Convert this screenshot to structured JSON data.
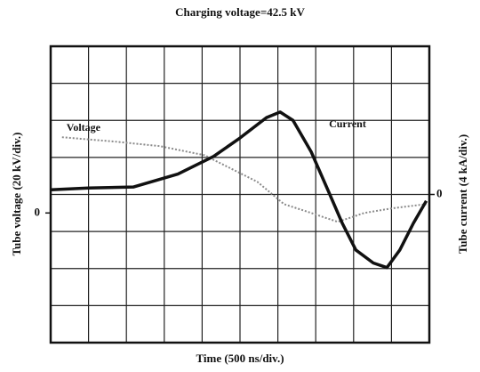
{
  "chart_data": {
    "type": "line",
    "title": "Charging voltage=42.5 kV",
    "xlabel": "Time (500 ns/div.)",
    "ylabel": "Tube voltage (20 kV/div.)",
    "y2label": "Tube current (4 kA/div.)",
    "xlim": [
      0,
      5000
    ],
    "ylim": [
      90,
      -70
    ],
    "yticks": [
      0
    ],
    "y2lim": [
      16,
      -16
    ],
    "y2ticks": [
      0
    ],
    "series": [
      {
        "name": "Voltage",
        "color": "#8a8a8a",
        "axis": "y",
        "x": [
          150,
          860,
          1440,
          2030,
          2380,
          2730,
          3080,
          3440,
          3790,
          4140,
          4490,
          4960
        ],
        "values": [
          40.9,
          38.5,
          36.1,
          31.2,
          24.0,
          16.8,
          4.8,
          0,
          -4.8,
          0,
          2.4,
          4.8
        ]
      },
      {
        "name": "Current",
        "color": "#111111",
        "axis": "y2",
        "x": [
          0,
          500,
          1090,
          1680,
          2150,
          2500,
          2850,
          3030,
          3200,
          3440,
          3670,
          3850,
          4030,
          4260,
          4440,
          4610,
          4790,
          4960
        ],
        "values": [
          0.5,
          0.7,
          0.8,
          2.2,
          4.1,
          6.1,
          8.3,
          8.9,
          8.0,
          4.6,
          0.3,
          -3.1,
          -6.0,
          -7.4,
          -7.9,
          -6.0,
          -3.1,
          -0.7
        ]
      }
    ]
  }
}
